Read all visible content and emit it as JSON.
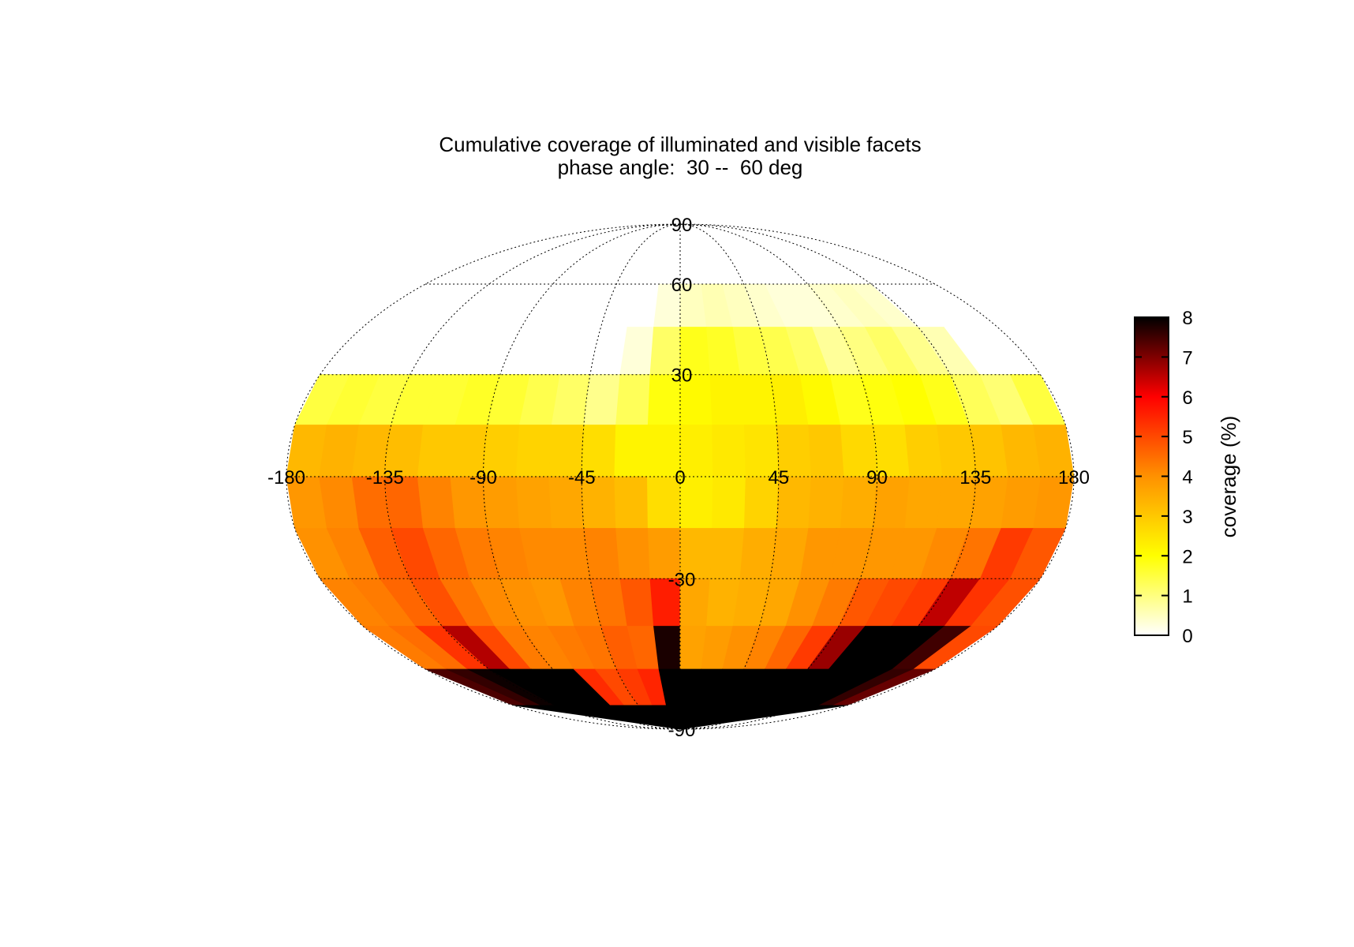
{
  "chart_data": {
    "type": "heatmap",
    "projection": "mollweide",
    "title": "Cumulative coverage of illuminated and visible facets",
    "subtitle": "phase angle:  30 --  60 deg",
    "colorbar": {
      "label": "coverage (%)",
      "min": 0,
      "max": 8,
      "ticks": [
        "0",
        "1",
        "2",
        "3",
        "4",
        "5",
        "6",
        "7",
        "8"
      ],
      "colormap": "hot (reversed)",
      "placement": "right"
    },
    "axes": {
      "lon_range": [
        -180,
        180
      ],
      "lat_range": [
        -90,
        90
      ],
      "lon_ticks": [
        -180,
        -135,
        -90,
        -45,
        0,
        45,
        90,
        135,
        180
      ],
      "lat_ticks": [
        90,
        60,
        30,
        -30,
        -90
      ],
      "lon_tick_labels": [
        "-180",
        "-135",
        "-90",
        "-45",
        "0",
        "45",
        "90",
        "135",
        "180"
      ],
      "lat_tick_labels": [
        "90",
        "60",
        "30",
        "-30",
        "-90"
      ],
      "grid": true
    },
    "grid_lon_step": 15,
    "grid_lat_bands": [
      [
        60,
        90
      ],
      [
        45,
        60
      ],
      [
        30,
        45
      ],
      [
        15,
        30
      ],
      [
        0,
        15
      ],
      [
        -15,
        0
      ],
      [
        -30,
        -15
      ],
      [
        -45,
        -30
      ],
      [
        -60,
        -45
      ],
      [
        -75,
        -60
      ],
      [
        -90,
        -75
      ]
    ],
    "lon_columns": [
      -180,
      -165,
      -150,
      -135,
      -120,
      -105,
      -90,
      -75,
      -60,
      -45,
      -30,
      -15,
      0,
      15,
      30,
      45,
      60,
      75,
      90,
      105,
      120,
      135,
      150,
      165
    ],
    "coverage": [
      [
        0,
        0,
        0,
        0,
        0,
        0,
        0,
        0,
        0,
        0,
        0,
        0,
        0,
        0,
        0,
        0,
        0,
        0,
        0,
        0,
        0,
        0,
        0,
        0
      ],
      [
        0,
        0,
        0,
        0,
        0,
        0,
        0,
        0,
        0,
        0,
        0,
        0.3,
        0.5,
        0.6,
        0.5,
        0.4,
        0.3,
        0.3,
        0.4,
        0.5,
        0.4,
        0,
        0,
        0
      ],
      [
        0,
        0,
        0,
        0,
        0,
        0,
        0,
        0,
        0,
        0,
        0.3,
        1.2,
        1.8,
        1.7,
        1.5,
        1.4,
        1.2,
        0.8,
        1.0,
        1.2,
        0.9,
        0.6,
        0,
        0
      ],
      [
        1.5,
        1.6,
        1.5,
        1.6,
        1.6,
        1.7,
        1.6,
        1.4,
        1.2,
        0.9,
        1.3,
        1.9,
        2.1,
        2.2,
        2.2,
        2.3,
        2.1,
        1.8,
        1.9,
        2.0,
        1.8,
        1.3,
        1.1,
        1.5
      ],
      [
        3.3,
        3.4,
        3.3,
        3.2,
        3.0,
        3.0,
        2.9,
        2.8,
        2.8,
        2.6,
        2.2,
        2.2,
        2.3,
        2.4,
        2.5,
        2.9,
        3.0,
        2.7,
        2.6,
        2.9,
        3.0,
        3.1,
        3.3,
        3.4
      ],
      [
        3.9,
        4.1,
        4.5,
        4.6,
        4.2,
        3.9,
        3.8,
        3.7,
        3.6,
        3.4,
        3.2,
        2.6,
        2.3,
        2.4,
        2.8,
        3.3,
        3.4,
        3.5,
        3.7,
        3.6,
        3.6,
        3.7,
        3.8,
        3.9
      ],
      [
        4.0,
        4.2,
        4.7,
        5.0,
        4.6,
        4.3,
        4.2,
        4.1,
        4.1,
        4.2,
        4.0,
        3.8,
        3.3,
        3.3,
        3.5,
        3.6,
        3.9,
        3.9,
        3.9,
        3.9,
        4.1,
        4.4,
        5.2,
        4.8
      ],
      [
        4.2,
        4.3,
        4.6,
        4.9,
        4.4,
        4.1,
        4.0,
        3.9,
        4.2,
        4.4,
        4.8,
        5.6,
        3.6,
        3.4,
        3.5,
        3.6,
        4.0,
        4.3,
        4.8,
        5.0,
        5.2,
        6.5,
        5.3,
        4.9
      ],
      [
        4.3,
        4.5,
        5.3,
        6.6,
        5.0,
        4.3,
        4.2,
        4.3,
        4.4,
        4.7,
        4.6,
        7.8,
        3.7,
        3.8,
        4.0,
        4.2,
        4.6,
        5.2,
        6.8,
        8.0,
        8.0,
        8.0,
        7.5,
        5.0
      ],
      [
        7.4,
        7.6,
        7.9,
        8.0,
        8.0,
        8.0,
        8.0,
        5.4,
        5.0,
        5.2,
        5.5,
        8.0,
        8.0,
        8.0,
        8.0,
        8.0,
        8.0,
        8.0,
        8.0,
        8.0,
        8.0,
        8.0,
        7.6,
        7.2
      ],
      [
        8.0,
        8.0,
        8.0,
        8.0,
        8.0,
        8.0,
        8.0,
        8.0,
        8.0,
        8.0,
        8.0,
        8.0,
        8.0,
        8.0,
        8.0,
        8.0,
        8.0,
        8.0,
        8.0,
        8.0,
        8.0,
        8.0,
        8.0,
        8.0
      ]
    ]
  }
}
